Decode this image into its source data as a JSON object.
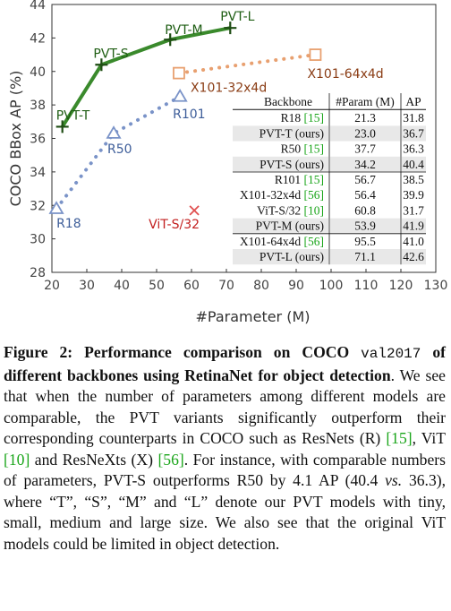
{
  "chart_data": {
    "type": "scatter",
    "xlabel": "#Parameter (M)",
    "ylabel": "COCO BBox AP (%)",
    "xlim": [
      20,
      130
    ],
    "ylim": [
      28,
      44
    ],
    "xticks": [
      20,
      30,
      40,
      50,
      60,
      70,
      80,
      90,
      100,
      110,
      120,
      130
    ],
    "yticks": [
      28,
      30,
      32,
      34,
      36,
      38,
      40,
      42,
      44
    ],
    "grid": false,
    "series": [
      {
        "name": "PVT",
        "color": "#3a8a2c",
        "marker": "plus",
        "line": "solid",
        "labels": [
          "PVT-T",
          "PVT-S",
          "PVT-M",
          "PVT-L"
        ],
        "x": [
          23.0,
          34.2,
          53.9,
          71.1
        ],
        "y": [
          36.7,
          40.4,
          41.9,
          42.6
        ]
      },
      {
        "name": "ResNet",
        "color": "#7a93c8",
        "marker": "triangle",
        "line": "dotted",
        "labels": [
          "R18",
          "R50",
          "R101"
        ],
        "x": [
          21.3,
          37.7,
          56.7
        ],
        "y": [
          31.8,
          36.3,
          38.5
        ]
      },
      {
        "name": "ResNeXt",
        "color": "#e8a070",
        "marker": "square",
        "line": "dotted",
        "labels": [
          "X101-32x4d",
          "X101-64x4d"
        ],
        "x": [
          56.4,
          95.5
        ],
        "y": [
          39.9,
          41.0
        ]
      },
      {
        "name": "ViT",
        "color": "#e05050",
        "marker": "cross",
        "line": "none",
        "labels": [
          "ViT-S/32"
        ],
        "x": [
          60.8
        ],
        "y": [
          31.7
        ]
      }
    ]
  },
  "table": {
    "headers": [
      "Backbone",
      "#Param (M)",
      "AP"
    ],
    "rows": [
      {
        "backbone": "R18",
        "cite": "[15]",
        "param": "21.3",
        "ap": "31.8",
        "shade": false
      },
      {
        "backbone": "PVT-T (ours)",
        "cite": "",
        "param": "23.0",
        "ap": "36.7",
        "shade": true
      },
      {
        "backbone": "R50",
        "cite": "[15]",
        "param": "37.7",
        "ap": "36.3",
        "shade": false
      },
      {
        "backbone": "PVT-S (ours)",
        "cite": "",
        "param": "34.2",
        "ap": "40.4",
        "shade": true
      },
      {
        "backbone": "R101",
        "cite": "[15]",
        "param": "56.7",
        "ap": "38.5",
        "shade": false
      },
      {
        "backbone": "X101-32x4d",
        "cite": "[56]",
        "param": "56.4",
        "ap": "39.9",
        "shade": false
      },
      {
        "backbone": "ViT-S/32",
        "cite": "[10]",
        "param": "60.8",
        "ap": "31.7",
        "shade": false
      },
      {
        "backbone": "PVT-M (ours)",
        "cite": "",
        "param": "53.9",
        "ap": "41.9",
        "shade": true
      },
      {
        "backbone": "X101-64x4d",
        "cite": "[56]",
        "param": "95.5",
        "ap": "41.0",
        "shade": false
      },
      {
        "backbone": "PVT-L (ours)",
        "cite": "",
        "param": "71.1",
        "ap": "42.6",
        "shade": true
      }
    ]
  },
  "caption": {
    "label": "Figure 2:",
    "bold_a": "Performance comparison on COCO",
    "mono": "val2017",
    "bold_b": "of different backbones using RetinaNet for object detection",
    "text_1": ". We see that when the number of parameters among different models are comparable, the PVT variants significantly outperform their corresponding counterparts in COCO such as ResNets (R) ",
    "cite_1": "[15]",
    "text_2": ", ViT ",
    "cite_2": "[10]",
    "text_3": " and ResNeXts (X) ",
    "cite_3": "[56]",
    "text_4": ". For instance, with comparable numbers of parameters, PVT-S outperforms R50 by 4.1 AP (40.4 ",
    "vs": "vs.",
    "text_5": " 36.3), where “T”, “S”, “M” and “L” denote our PVT models with tiny, small, medium and large size. We also see that the original ViT models could be limited in object detection."
  }
}
